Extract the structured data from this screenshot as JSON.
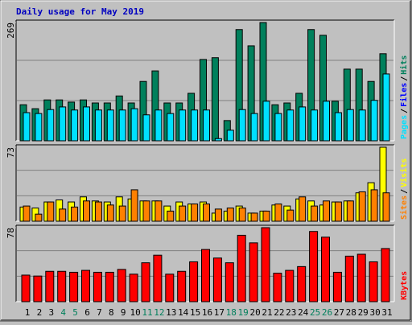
{
  "chart_data": [
    {
      "type": "bar",
      "title": "Daily usage for May 2019",
      "ylim": [
        0,
        269
      ],
      "yticks": [
        269
      ],
      "legend_separator": "/",
      "extra_legend": {
        "name": "Files",
        "color": "#0000FF"
      },
      "series": [
        {
          "name": "Hits",
          "color": "#00805C",
          "values": [
            82,
            73,
            93,
            93,
            88,
            93,
            86,
            86,
            102,
            86,
            135,
            159,
            86,
            86,
            108,
            185,
            189,
            46,
            253,
            216,
            269,
            82,
            86,
            108,
            253,
            240,
            90,
            163,
            163,
            135,
            198
          ]
        },
        {
          "name": "Pages",
          "color": "#00E0FF",
          "values": [
            64,
            62,
            71,
            77,
            70,
            77,
            70,
            70,
            70,
            73,
            59,
            70,
            62,
            70,
            70,
            70,
            5,
            24,
            71,
            62,
            90,
            62,
            70,
            77,
            70,
            90,
            64,
            71,
            70,
            92,
            152
          ]
        }
      ]
    },
    {
      "type": "bar",
      "ylim": [
        0,
        73
      ],
      "yticks": [
        73
      ],
      "legend_separator": "/",
      "series": [
        {
          "name": "Visits",
          "color": "#FFFF00",
          "values": [
            14,
            13,
            19,
            21,
            19,
            24,
            20,
            19,
            24,
            22,
            20,
            20,
            15,
            19,
            17,
            19,
            8,
            10,
            15,
            8,
            10,
            16,
            15,
            22,
            20,
            16,
            19,
            20,
            28,
            38,
            73
          ]
        },
        {
          "name": "Sites",
          "color": "#FF8000",
          "values": [
            15,
            7,
            19,
            12,
            14,
            20,
            19,
            16,
            15,
            31,
            20,
            20,
            10,
            15,
            17,
            17,
            12,
            13,
            13,
            8,
            10,
            17,
            11,
            24,
            15,
            20,
            19,
            20,
            29,
            31,
            28
          ]
        }
      ]
    },
    {
      "type": "bar",
      "ylim": [
        0,
        78
      ],
      "yticks": [
        78
      ],
      "categories": [
        "1",
        "2",
        "3",
        "4",
        "5",
        "6",
        "7",
        "8",
        "9",
        "10",
        "11",
        "12",
        "13",
        "14",
        "15",
        "16",
        "17",
        "18",
        "19",
        "20",
        "21",
        "22",
        "23",
        "24",
        "25",
        "26",
        "27",
        "28",
        "29",
        "30",
        "31"
      ],
      "highlight_indices": [
        3,
        4,
        10,
        11,
        17,
        18,
        24,
        25
      ],
      "highlight_color": "#00805C",
      "series": [
        {
          "name": "KBytes",
          "color": "#FF0000",
          "values": [
            28,
            27,
            32,
            32,
            31,
            33,
            31,
            31,
            34,
            29,
            41,
            49,
            29,
            32,
            42,
            55,
            46,
            41,
            70,
            62,
            78,
            30,
            33,
            37,
            74,
            68,
            31,
            48,
            50,
            42,
            56
          ]
        }
      ]
    }
  ]
}
